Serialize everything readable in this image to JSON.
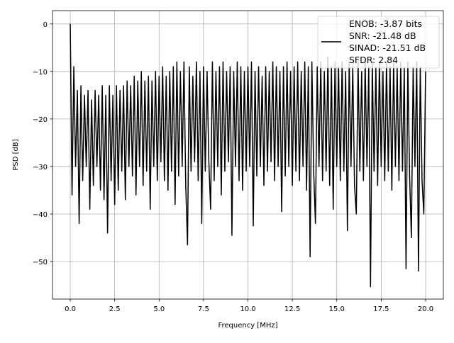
{
  "chart_data": {
    "type": "line",
    "title": "",
    "xlabel": "Frequency [MHz]",
    "ylabel": "PSD [dB]",
    "xlim": [
      -1.0,
      21.0
    ],
    "ylim": [
      -57.9,
      2.8
    ],
    "xticks": [
      0.0,
      2.5,
      5.0,
      7.5,
      10.0,
      12.5,
      15.0,
      17.5,
      20.0
    ],
    "xtick_labels": [
      "0.0",
      "2.5",
      "5.0",
      "7.5",
      "10.0",
      "12.5",
      "15.0",
      "17.5",
      "20.0"
    ],
    "yticks": [
      0,
      -10,
      -20,
      -30,
      -40,
      -50
    ],
    "ytick_labels": [
      "0",
      "−10",
      "−20",
      "−30",
      "−40",
      "−50"
    ],
    "grid": true,
    "legend_position": "top-right",
    "legend": [
      "ENOB: -3.87 bits",
      "SNR: -21.48 dB",
      "SINAD: -21.51 dB",
      "SFDR: 2.84"
    ],
    "line_color": "#000000",
    "series": [
      {
        "x_start": 0.0,
        "x_step": 0.1,
        "y": [
          0,
          -36,
          -9,
          -30,
          -14,
          -42,
          -13,
          -33,
          -15,
          -30,
          -14,
          -39,
          -16,
          -34,
          -14,
          -30,
          -15,
          -35,
          -13,
          -37,
          -15,
          -44,
          -13,
          -33,
          -15,
          -38,
          -13,
          -35,
          -14,
          -31,
          -13,
          -37,
          -12,
          -30,
          -13,
          -32,
          -11,
          -36,
          -12,
          -30,
          -10,
          -34,
          -12,
          -31,
          -11,
          -39,
          -12,
          -30,
          -10,
          -33,
          -11,
          -29,
          -9,
          -33,
          -11,
          -35,
          -10,
          -31,
          -9,
          -38,
          -8,
          -32,
          -10,
          -30,
          -8,
          -34,
          -46.5,
          -9,
          -31,
          -11,
          -29,
          -8,
          -33,
          -10,
          -42,
          -9,
          -31,
          -10,
          -29,
          -39,
          -8,
          -33,
          -10,
          -30,
          -9,
          -36,
          -8,
          -31,
          -10,
          -29,
          -9,
          -44.5,
          -10,
          -30,
          -8,
          -33,
          -9,
          -35,
          -10,
          -31,
          -9,
          -30,
          -8,
          -42.5,
          -10,
          -32,
          -9,
          -30,
          -11,
          -34,
          -9,
          -31,
          -10,
          -29,
          -8,
          -33,
          -9,
          -30,
          -10,
          -39.5,
          -9,
          -32,
          -8,
          -30,
          -10,
          -34,
          -9,
          -31,
          -8,
          -33,
          -10,
          -30,
          -8,
          -35,
          -9,
          -49,
          -8,
          -31,
          -42,
          -9,
          -30,
          -8,
          -33,
          -10,
          -31,
          -7,
          -34,
          -9,
          -39,
          -8,
          -30,
          -9,
          -33,
          -8,
          -31,
          -10,
          -43.5,
          -8,
          -30,
          -9,
          -34,
          -40,
          -8,
          -31,
          -10,
          -33,
          -8,
          -30,
          -9,
          -55.3,
          -8,
          -31,
          -9,
          -34,
          -8,
          -30,
          -10,
          -33,
          -8,
          -31,
          -9,
          -35,
          -8,
          -30,
          -9,
          -33,
          -8,
          -31,
          -9,
          -51.5,
          -8,
          -32,
          -45,
          -9,
          -30,
          -8,
          -52,
          -9,
          -33,
          -40,
          -10
        ]
      }
    ]
  }
}
